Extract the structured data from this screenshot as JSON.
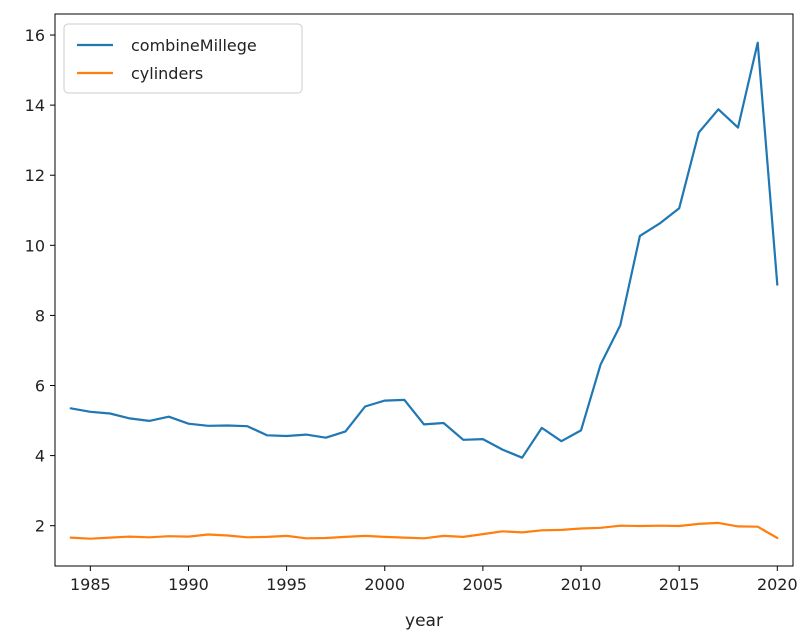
{
  "chart_data": {
    "type": "line",
    "title": "",
    "xlabel": "year",
    "ylabel": "",
    "xlim": [
      1983.2,
      2020.8
    ],
    "ylim": [
      0.85,
      16.6
    ],
    "xticks": [
      1985,
      1990,
      1995,
      2000,
      2005,
      2010,
      2015,
      2020
    ],
    "yticks": [
      2,
      4,
      6,
      8,
      10,
      12,
      14,
      16
    ],
    "grid": false,
    "legend_position": "top-left",
    "x": [
      1984,
      1985,
      1986,
      1987,
      1988,
      1989,
      1990,
      1991,
      1992,
      1993,
      1994,
      1995,
      1996,
      1997,
      1998,
      1999,
      2000,
      2001,
      2002,
      2003,
      2004,
      2005,
      2006,
      2007,
      2008,
      2009,
      2010,
      2011,
      2012,
      2013,
      2014,
      2015,
      2016,
      2017,
      2018,
      2019,
      2020
    ],
    "series": [
      {
        "name": "combineMillege",
        "color": "#1f77b4",
        "values": [
          5.35,
          5.25,
          5.2,
          5.06,
          4.99,
          5.11,
          4.91,
          4.85,
          4.86,
          4.84,
          4.58,
          4.56,
          4.6,
          4.51,
          4.69,
          5.4,
          5.57,
          5.59,
          4.89,
          4.93,
          4.45,
          4.47,
          4.17,
          3.94,
          4.79,
          4.41,
          4.72,
          6.6,
          7.72,
          10.27,
          10.62,
          11.06,
          13.22,
          13.88,
          13.36,
          15.78,
          8.88
        ]
      },
      {
        "name": "cylinders",
        "color": "#ff7f0e",
        "values": [
          1.66,
          1.63,
          1.66,
          1.69,
          1.67,
          1.7,
          1.69,
          1.75,
          1.72,
          1.67,
          1.68,
          1.71,
          1.64,
          1.65,
          1.68,
          1.71,
          1.68,
          1.66,
          1.64,
          1.71,
          1.68,
          1.76,
          1.84,
          1.81,
          1.87,
          1.88,
          1.92,
          1.94,
          2.0,
          1.99,
          2.0,
          1.99,
          2.05,
          2.08,
          1.98,
          1.97,
          1.65
        ]
      }
    ]
  }
}
